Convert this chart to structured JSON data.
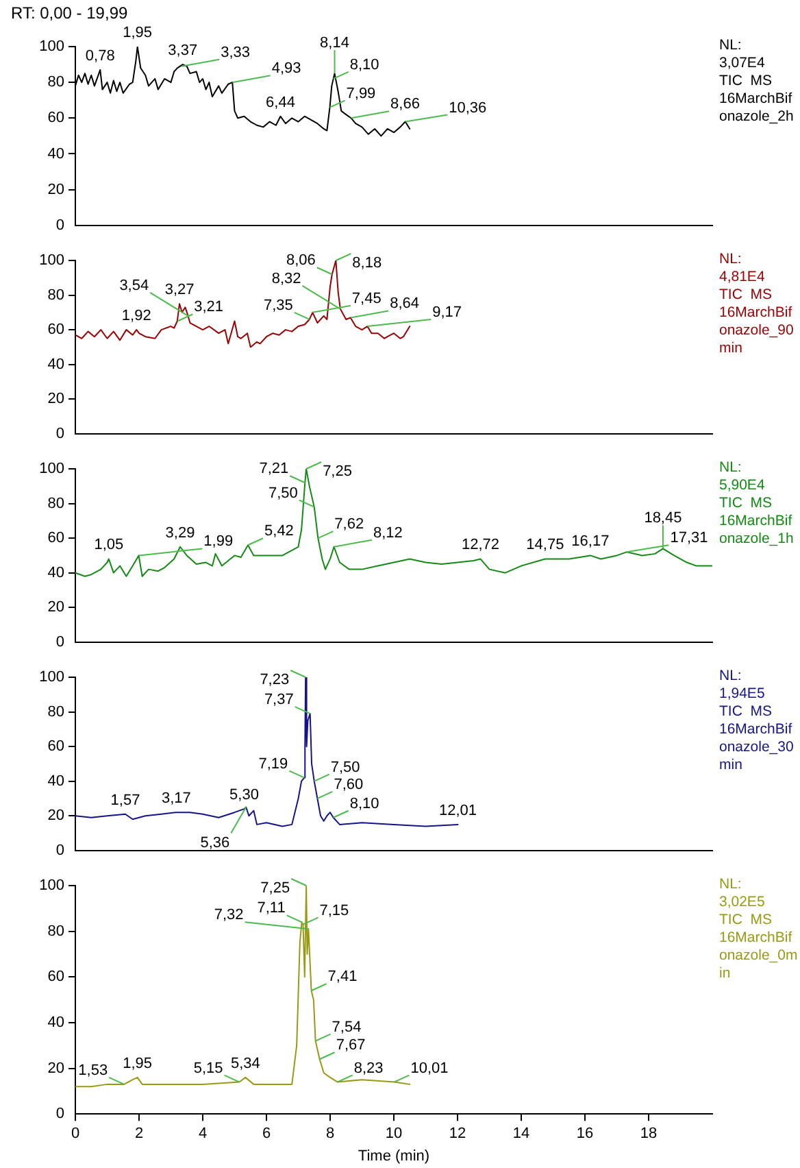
{
  "chart_data": [
    {
      "type": "line",
      "title": "RT: 0,00 - 19,99",
      "xlim": [
        0,
        20
      ],
      "xticks": [
        0,
        2,
        4,
        6,
        8,
        10,
        12,
        14,
        16,
        18
      ],
      "ylim": [
        0,
        100
      ],
      "yticks": [
        0,
        20,
        40,
        60,
        80,
        100
      ],
      "tick_labels": "y",
      "grid": false,
      "legend": false,
      "marker": "none",
      "series": [
        {
          "color": "#000000",
          "x": [
            0,
            0.1,
            0.2,
            0.3,
            0.4,
            0.5,
            0.6,
            0.7,
            0.78,
            0.85,
            1.0,
            1.1,
            1.2,
            1.3,
            1.4,
            1.5,
            1.7,
            1.8,
            1.9,
            1.95,
            2.05,
            2.2,
            2.3,
            2.5,
            2.6,
            2.8,
            3.0,
            3.1,
            3.2,
            3.37,
            3.5,
            3.6,
            3.8,
            3.9,
            4.0,
            4.1,
            4.2,
            4.3,
            4.5,
            4.6,
            4.8,
            4.93,
            5.0,
            5.1,
            5.3,
            5.5,
            5.7,
            5.9,
            6.1,
            6.3,
            6.44,
            6.6,
            6.8,
            7.0,
            7.2,
            7.4,
            7.6,
            7.8,
            7.9,
            7.99,
            8.05,
            8.14,
            8.25,
            8.35,
            8.5,
            8.66,
            8.8,
            9.0,
            9.2,
            9.4,
            9.6,
            9.8,
            10.0,
            10.2,
            10.36,
            10.5
          ],
          "values": [
            78,
            84,
            80,
            85,
            79,
            84,
            78,
            83,
            87,
            76,
            80,
            74,
            81,
            75,
            80,
            74,
            79,
            80,
            92,
            100,
            88,
            84,
            78,
            82,
            76,
            82,
            80,
            86,
            88,
            90,
            89,
            85,
            86,
            80,
            82,
            76,
            80,
            72,
            78,
            74,
            79,
            80,
            64,
            60,
            61,
            58,
            56,
            55,
            58,
            56,
            61,
            57,
            60,
            58,
            61,
            59,
            57,
            54,
            53,
            66,
            78,
            85,
            75,
            64,
            62,
            60,
            57,
            55,
            51,
            54,
            50,
            54,
            52,
            55,
            58,
            54
          ]
        }
      ],
      "annotations": [
        {
          "text": "0,78",
          "x": 0.78,
          "y": 87
        },
        {
          "text": "1,95",
          "x": 1.95,
          "y": 100
        },
        {
          "text": "3,37",
          "x": 3.37,
          "y": 90
        },
        {
          "text": "3,33",
          "x": 3.33,
          "y": 89
        },
        {
          "text": "4,93",
          "x": 4.93,
          "y": 80
        },
        {
          "text": "6,44",
          "x": 6.44,
          "y": 61
        },
        {
          "text": "8,10",
          "x": 8.1,
          "y": 82
        },
        {
          "text": "8,14",
          "x": 8.14,
          "y": 85
        },
        {
          "text": "7,99",
          "x": 7.99,
          "y": 66
        },
        {
          "text": "8,66",
          "x": 8.66,
          "y": 60
        },
        {
          "text": "10,36",
          "x": 10.36,
          "y": 58
        },
        "NL:",
        "3,07E4",
        "TIC  MS",
        "16MarchBifonazole_2h"
      ]
    },
    {
      "type": "line",
      "xlim": [
        0,
        20
      ],
      "xticks": [
        0,
        2,
        4,
        6,
        8,
        10,
        12,
        14,
        16,
        18
      ],
      "ylim": [
        0,
        100
      ],
      "yticks": [
        0,
        20,
        40,
        60,
        80,
        100
      ],
      "tick_labels": "y",
      "grid": false,
      "legend": false,
      "marker": "none",
      "series": [
        {
          "color": "#990000",
          "x": [
            0,
            0.2,
            0.4,
            0.6,
            0.8,
            1.0,
            1.2,
            1.4,
            1.6,
            1.8,
            1.92,
            2.0,
            2.2,
            2.5,
            2.7,
            3.0,
            3.1,
            3.2,
            3.27,
            3.35,
            3.45,
            3.54,
            3.6,
            3.8,
            4.0,
            4.2,
            4.5,
            4.7,
            4.8,
            5.0,
            5.1,
            5.2,
            5.4,
            5.5,
            5.7,
            5.8,
            6.0,
            6.2,
            6.4,
            6.6,
            6.8,
            7.0,
            7.2,
            7.35,
            7.45,
            7.6,
            7.8,
            7.9,
            8.0,
            8.06,
            8.18,
            8.25,
            8.32,
            8.5,
            8.64,
            8.8,
            9.0,
            9.17,
            9.3,
            9.5,
            9.7,
            9.8,
            10.0,
            10.2,
            10.3,
            10.5
          ],
          "values": [
            57,
            55,
            59,
            56,
            60,
            55,
            59,
            54,
            60,
            57,
            60,
            58,
            56,
            55,
            60,
            62,
            61,
            65,
            75,
            70,
            73,
            68,
            64,
            62,
            60,
            62,
            58,
            60,
            52,
            65,
            56,
            55,
            58,
            50,
            53,
            52,
            56,
            58,
            57,
            60,
            59,
            62,
            63,
            66,
            70,
            64,
            68,
            66,
            85,
            92,
            100,
            82,
            72,
            66,
            67,
            62,
            60,
            62,
            58,
            58,
            55,
            56,
            58,
            55,
            56,
            62
          ]
        }
      ],
      "annotations": [
        {
          "text": "1,92",
          "x": 1.92,
          "y": 60
        },
        {
          "text": "3,21",
          "x": 3.21,
          "y": 65
        },
        {
          "text": "3,27",
          "x": 3.27,
          "y": 75
        },
        {
          "text": "3,54",
          "x": 3.54,
          "y": 68
        },
        {
          "text": "7,35",
          "x": 7.35,
          "y": 66
        },
        {
          "text": "7,45",
          "x": 7.45,
          "y": 70
        },
        {
          "text": "8,06",
          "x": 8.06,
          "y": 92
        },
        {
          "text": "8,18",
          "x": 8.18,
          "y": 100
        },
        {
          "text": "8,32",
          "x": 8.32,
          "y": 72
        },
        {
          "text": "8,64",
          "x": 8.64,
          "y": 67
        },
        {
          "text": "9,17",
          "x": 9.17,
          "y": 62
        },
        "NL:",
        "4,81E4",
        "TIC  MS",
        "16MarchBifonazole_90min"
      ]
    },
    {
      "type": "line",
      "xlim": [
        0,
        20
      ],
      "xticks": [
        0,
        2,
        4,
        6,
        8,
        10,
        12,
        14,
        16,
        18
      ],
      "ylim": [
        0,
        100
      ],
      "yticks": [
        0,
        20,
        40,
        60,
        80,
        100
      ],
      "tick_labels": "y",
      "grid": false,
      "legend": false,
      "marker": "none",
      "series": [
        {
          "color": "#138a13",
          "x": [
            0,
            0.3,
            0.5,
            0.8,
            1.0,
            1.05,
            1.2,
            1.4,
            1.6,
            1.8,
            1.99,
            2.1,
            2.3,
            2.6,
            2.8,
            3.1,
            3.29,
            3.5,
            3.8,
            4.1,
            4.3,
            4.4,
            4.6,
            5.0,
            5.2,
            5.42,
            5.6,
            6.0,
            6.5,
            7.0,
            7.1,
            7.21,
            7.25,
            7.35,
            7.5,
            7.62,
            7.75,
            7.85,
            8.0,
            8.12,
            8.3,
            8.6,
            9.0,
            9.5,
            10.0,
            10.5,
            11.0,
            11.5,
            12.0,
            12.5,
            12.72,
            13.0,
            13.5,
            14.0,
            14.75,
            15.5,
            16.17,
            16.5,
            17.0,
            17.31,
            17.8,
            18.2,
            18.45,
            18.8,
            19.2,
            19.5,
            19.99
          ],
          "values": [
            40,
            38,
            39,
            42,
            46,
            48,
            40,
            44,
            38,
            44,
            50,
            38,
            42,
            41,
            43,
            48,
            55,
            50,
            45,
            46,
            44,
            51,
            44,
            50,
            49,
            56,
            50,
            50,
            50,
            55,
            65,
            92,
            100,
            90,
            78,
            60,
            48,
            42,
            48,
            55,
            46,
            42,
            42,
            44,
            46,
            48,
            46,
            45,
            46,
            47,
            48,
            42,
            40,
            44,
            48,
            48,
            50,
            48,
            50,
            52,
            50,
            51,
            54,
            50,
            46,
            44,
            44
          ]
        }
      ],
      "annotations": [
        {
          "text": "1,05",
          "x": 1.05,
          "y": 48
        },
        {
          "text": "1,99",
          "x": 1.99,
          "y": 50
        },
        {
          "text": "3,29",
          "x": 3.29,
          "y": 55
        },
        {
          "text": "5,42",
          "x": 5.42,
          "y": 56
        },
        {
          "text": "7,21",
          "x": 7.21,
          "y": 92
        },
        {
          "text": "7,25",
          "x": 7.25,
          "y": 100
        },
        {
          "text": "7,50",
          "x": 7.5,
          "y": 78
        },
        {
          "text": "7,62",
          "x": 7.62,
          "y": 60
        },
        {
          "text": "8,12",
          "x": 8.12,
          "y": 55
        },
        {
          "text": "12,72",
          "x": 12.72,
          "y": 48
        },
        {
          "text": "14,75",
          "x": 14.75,
          "y": 48
        },
        {
          "text": "16,17",
          "x": 16.17,
          "y": 50
        },
        {
          "text": "17,31",
          "x": 17.31,
          "y": 52
        },
        {
          "text": "18,45",
          "x": 18.45,
          "y": 54
        },
        "NL:",
        "5,90E4",
        "TIC  MS",
        "16MarchBifonazole_1h"
      ]
    },
    {
      "type": "line",
      "xlim": [
        0,
        20
      ],
      "xticks": [
        0,
        2,
        4,
        6,
        8,
        10,
        12,
        14,
        16,
        18
      ],
      "ylim": [
        0,
        100
      ],
      "yticks": [
        0,
        20,
        40,
        60,
        80,
        100
      ],
      "tick_labels": "y",
      "grid": false,
      "legend": false,
      "marker": "none",
      "series": [
        {
          "color": "#141487",
          "x": [
            0,
            0.5,
            1.0,
            1.57,
            1.8,
            2.2,
            2.7,
            3.17,
            3.6,
            4.0,
            4.5,
            5.0,
            5.3,
            5.36,
            5.45,
            5.6,
            5.7,
            6.0,
            6.5,
            6.8,
            7.0,
            7.1,
            7.19,
            7.21,
            7.23,
            7.26,
            7.3,
            7.37,
            7.42,
            7.5,
            7.6,
            7.7,
            7.8,
            7.9,
            8.0,
            8.1,
            8.3,
            9.0,
            10.0,
            11.0,
            12.01
          ],
          "values": [
            20,
            19,
            20,
            21,
            18,
            20,
            21,
            22,
            22,
            21,
            19,
            22,
            24,
            25,
            20,
            23,
            15,
            16,
            14,
            15,
            30,
            40,
            42,
            60,
            100,
            60,
            75,
            79,
            50,
            40,
            30,
            20,
            17,
            20,
            22,
            19,
            15,
            16,
            15,
            14,
            15
          ]
        }
      ],
      "annotations": [
        {
          "text": "1,57",
          "x": 1.57,
          "y": 21
        },
        {
          "text": "3,17",
          "x": 3.17,
          "y": 22
        },
        {
          "text": "5,30",
          "x": 5.3,
          "y": 24
        },
        {
          "text": "5,36",
          "x": 5.36,
          "y": 25
        },
        {
          "text": "7,19",
          "x": 7.19,
          "y": 42
        },
        {
          "text": "7,23",
          "x": 7.23,
          "y": 100
        },
        {
          "text": "7,37",
          "x": 7.37,
          "y": 79
        },
        {
          "text": "7,50",
          "x": 7.5,
          "y": 40
        },
        {
          "text": "7,60",
          "x": 7.6,
          "y": 30
        },
        {
          "text": "8,10",
          "x": 8.1,
          "y": 19
        },
        {
          "text": "12,01",
          "x": 12.01,
          "y": 15
        },
        "NL:",
        "1,94E5",
        "TIC  MS",
        "16MarchBifonazole_30min"
      ]
    },
    {
      "type": "line",
      "xlabel": "Time (min)",
      "xlim": [
        0,
        20
      ],
      "xticks": [
        0,
        2,
        4,
        6,
        8,
        10,
        12,
        14,
        16,
        18
      ],
      "ylim": [
        0,
        100
      ],
      "yticks": [
        0,
        20,
        40,
        60,
        80,
        100
      ],
      "grid": false,
      "legend": false,
      "marker": "none",
      "series": [
        {
          "color": "#999914",
          "x": [
            0,
            0.5,
            1.0,
            1.53,
            1.8,
            1.95,
            2.1,
            3.0,
            4.0,
            5.15,
            5.34,
            5.6,
            6.0,
            6.8,
            6.95,
            7.05,
            7.11,
            7.15,
            7.2,
            7.25,
            7.28,
            7.32,
            7.41,
            7.48,
            7.54,
            7.67,
            7.8,
            8.0,
            8.23,
            9.0,
            10.01,
            10.5
          ],
          "values": [
            12,
            12,
            13,
            13,
            15,
            16,
            13,
            13,
            13,
            14,
            16,
            13,
            13,
            13,
            30,
            75,
            84,
            83,
            60,
            100,
            70,
            81,
            54,
            50,
            32,
            24,
            18,
            16,
            14,
            15,
            14,
            13
          ]
        }
      ],
      "annotations": [
        {
          "text": "1,53",
          "x": 1.53,
          "y": 13
        },
        {
          "text": "1,95",
          "x": 1.95,
          "y": 16
        },
        {
          "text": "5,15",
          "x": 5.15,
          "y": 14
        },
        {
          "text": "5,34",
          "x": 5.34,
          "y": 16
        },
        {
          "text": "7,11",
          "x": 7.11,
          "y": 84
        },
        {
          "text": "7,15",
          "x": 7.15,
          "y": 83
        },
        {
          "text": "7,25",
          "x": 7.25,
          "y": 100
        },
        {
          "text": "7,32",
          "x": 7.32,
          "y": 81
        },
        {
          "text": "7,41",
          "x": 7.41,
          "y": 54
        },
        {
          "text": "7,54",
          "x": 7.54,
          "y": 32
        },
        {
          "text": "7,67",
          "x": 7.67,
          "y": 24
        },
        {
          "text": "8,23",
          "x": 8.23,
          "y": 14
        },
        {
          "text": "10,01",
          "x": 10.01,
          "y": 14
        },
        "NL:",
        "3,02E5",
        "TIC  MS",
        "16MarchBifonazole_0min"
      ]
    }
  ]
}
